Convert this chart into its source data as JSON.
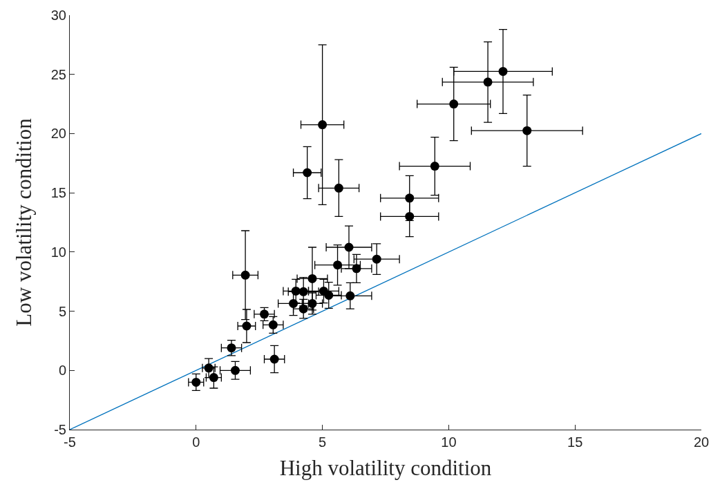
{
  "chart_data": {
    "type": "scatter",
    "xlabel": "High volatility condition",
    "ylabel": "Low volatility condition",
    "xlim": [
      -5,
      20
    ],
    "xticks": [
      -5,
      0,
      5,
      10,
      15,
      20
    ],
    "ylim": [
      -5,
      30
    ],
    "yticks": [
      -5,
      0,
      5,
      10,
      15,
      20,
      25,
      30
    ],
    "series": [
      {
        "type": "scatter",
        "color": "#000000",
        "marker": "circle",
        "x": [
          0.0,
          0.5,
          0.7,
          1.55,
          1.4,
          2.0,
          1.95,
          2.7,
          3.05,
          3.1,
          3.85,
          3.95,
          4.25,
          4.25,
          4.6,
          4.6,
          5.05,
          5.25,
          6.1,
          5.6,
          6.05,
          6.35,
          7.15,
          4.4,
          5.0,
          5.65,
          8.45,
          8.45,
          9.45,
          10.2,
          11.55,
          12.15,
          13.1
        ],
        "values": [
          -1.0,
          0.2,
          -0.6,
          0.0,
          1.9,
          3.75,
          8.05,
          4.75,
          3.85,
          0.95,
          5.65,
          6.7,
          6.65,
          5.2,
          7.75,
          5.65,
          6.7,
          6.35,
          6.3,
          8.9,
          10.4,
          8.6,
          9.4,
          16.7,
          20.75,
          15.4,
          13.0,
          14.55,
          17.25,
          22.5,
          24.35,
          25.25,
          20.25
        ],
        "errors": [
          0.7,
          0.8,
          0.9,
          0.75,
          0.65,
          1.4,
          3.75,
          0.55,
          0.7,
          1.15,
          1.0,
          1.0,
          1.2,
          0.8,
          2.65,
          0.9,
          1.0,
          1.1,
          1.1,
          1.7,
          1.8,
          1.2,
          1.3,
          2.2,
          6.75,
          2.4,
          1.7,
          1.9,
          2.45,
          3.1,
          3.4,
          3.55,
          3.0
        ],
        "xerrors": [
          0.3,
          0.25,
          0.3,
          0.6,
          0.4,
          0.35,
          0.5,
          0.4,
          0.4,
          0.4,
          0.6,
          0.5,
          0.6,
          0.4,
          0.6,
          0.4,
          0.6,
          0.5,
          0.85,
          0.9,
          0.9,
          0.6,
          0.9,
          0.55,
          0.85,
          0.8,
          1.15,
          1.15,
          1.4,
          1.45,
          1.8,
          1.95,
          2.2
        ]
      },
      {
        "type": "line",
        "color": "#0072bd",
        "marker": "none",
        "line_style": "solid",
        "x": [
          -5,
          20
        ],
        "values": [
          -5,
          20
        ]
      }
    ]
  }
}
